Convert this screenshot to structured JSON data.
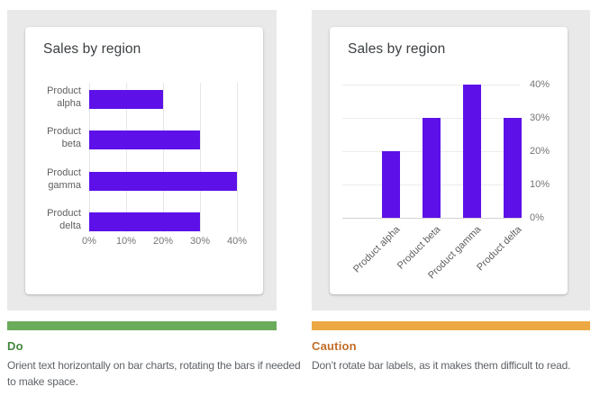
{
  "cards": {
    "do": {
      "label": "Do",
      "description": "Orient text horizontally on bar charts, rotating the bars if needed to make space.",
      "accent_color": "#6BAB5C",
      "label_color": "#44873E"
    },
    "caution": {
      "label": "Caution",
      "description": "Don’t rotate bar labels, as it makes them difficult to read.",
      "accent_color": "#ECA842",
      "label_color": "#C26D28"
    }
  },
  "chart_data": [
    {
      "type": "bar",
      "orientation": "horizontal",
      "title": "Sales by region",
      "categories": [
        "Product alpha",
        "Product beta",
        "Product gamma",
        "Product delta"
      ],
      "values": [
        20,
        30,
        40,
        30
      ],
      "value_suffix": "%",
      "xlim": [
        0,
        40
      ],
      "ticks": {
        "values": [
          0,
          10,
          20,
          30,
          40
        ],
        "labels": [
          "0%",
          "10%",
          "20%",
          "30%",
          "40%"
        ]
      },
      "grid": true,
      "legend": false,
      "bar_color": "#5D11E8"
    },
    {
      "type": "bar",
      "orientation": "vertical",
      "title": "Sales by region",
      "categories": [
        "Product alpha",
        "Product beta",
        "Product gamma",
        "Product delta"
      ],
      "values": [
        20,
        30,
        40,
        30
      ],
      "value_suffix": "%",
      "ylim": [
        0,
        40
      ],
      "ticks": {
        "values": [
          0,
          10,
          20,
          30,
          40
        ],
        "labels": [
          "0%",
          "10%",
          "20%",
          "30%",
          "40%"
        ]
      },
      "y_axis_side": "right",
      "x_label_rotation": -45,
      "grid": true,
      "legend": false,
      "bar_color": "#5D11E8"
    }
  ]
}
